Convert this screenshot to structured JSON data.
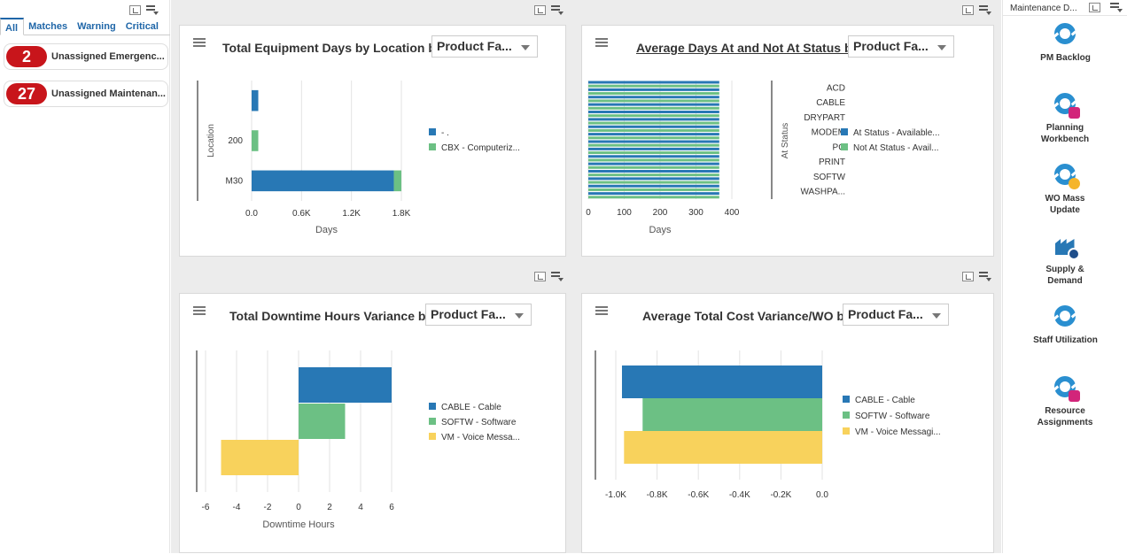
{
  "left": {
    "tabs": [
      "All",
      "Matches",
      "Warning",
      "Critical"
    ],
    "alerts": [
      {
        "count": "2",
        "label": "Unassigned Emergenc..."
      },
      {
        "count": "27",
        "label": "Unassigned Maintenan..."
      }
    ]
  },
  "right": {
    "header": "Maintenance D...",
    "tiles": [
      {
        "label": "PM Backlog",
        "icon": "refresh-circle-icon"
      },
      {
        "label": "Planning Workbench",
        "icon": "refresh-toolbox-icon"
      },
      {
        "label": "WO Mass Update",
        "icon": "refresh-gear-icon"
      },
      {
        "label": "Supply & Demand",
        "icon": "factory-search-icon"
      },
      {
        "label": "Staff Utilization",
        "icon": "refresh-circle-icon"
      },
      {
        "label": "Resource Assignments",
        "icon": "refresh-toolbox-icon"
      }
    ]
  },
  "colors": {
    "blue": "#2878b5",
    "green": "#6cc084",
    "yellow": "#f8d25c",
    "badge": "#c8151b"
  },
  "charts": {
    "c1": {
      "title": "Total Equipment Days by Location by",
      "dropdown": "Product Fa..."
    },
    "c2": {
      "title": "Average Days At and Not At Status by",
      "dropdown": "Product Fa..."
    },
    "c3": {
      "title": "Total Downtime Hours Variance by",
      "dropdown": "Product Fa..."
    },
    "c4": {
      "title": "Average Total Cost Variance/WO by",
      "dropdown": "Product Fa..."
    }
  },
  "chart_data": [
    {
      "type": "bar",
      "orientation": "horizontal",
      "stacked": true,
      "title": "Total Equipment Days by Location by",
      "ylabel": "Location",
      "xlabel": "Days",
      "categories": [
        "",
        "200",
        "M30"
      ],
      "xlim": [
        0,
        1800
      ],
      "xticks": [
        "0.0",
        "0.6K",
        "1.2K",
        "1.8K"
      ],
      "series": [
        {
          "name": "- .",
          "color": "#2878b5",
          "values": [
            80,
            0,
            1710
          ]
        },
        {
          "name": "CBX - Computeriz...",
          "color": "#6cc084",
          "values": [
            0,
            80,
            90
          ]
        }
      ],
      "legend": "right"
    },
    {
      "type": "bar",
      "orientation": "horizontal",
      "title": "Average Days At and Not At Status by",
      "ylabel": "At Status",
      "xlabel": "Days",
      "categories": [
        "ACD",
        "CABLE",
        "DRYPART",
        "MODEM",
        "PG",
        "PRINT",
        "SOFTW",
        "WASHPA..."
      ],
      "xlim": [
        0,
        400
      ],
      "xticks": [
        "0",
        "100",
        "200",
        "300",
        "400"
      ],
      "series": [
        {
          "name": "At Status - Available...",
          "color": "#2878b5",
          "values": [
            365,
            365,
            365,
            365,
            365,
            365,
            365,
            365
          ]
        },
        {
          "name": "Not At Status - Avail...",
          "color": "#6cc084",
          "values": [
            365,
            365,
            365,
            365,
            365,
            365,
            365,
            365
          ]
        }
      ],
      "legend": "right"
    },
    {
      "type": "bar",
      "orientation": "horizontal",
      "title": "Total Downtime Hours Variance by",
      "xlabel": "Downtime Hours",
      "xlim": [
        -6,
        6
      ],
      "xticks": [
        "-6",
        "-4",
        "-2",
        "0",
        "2",
        "4",
        "6"
      ],
      "series": [
        {
          "name": "CABLE - Cable",
          "color": "#2878b5",
          "values": [
            6
          ]
        },
        {
          "name": "SOFTW - Software",
          "color": "#6cc084",
          "values": [
            3
          ]
        },
        {
          "name": "VM - Voice Messa...",
          "color": "#f8d25c",
          "values": [
            -5
          ]
        }
      ],
      "legend": "right"
    },
    {
      "type": "bar",
      "orientation": "horizontal",
      "title": "Average Total Cost Variance/WO by",
      "xlim": [
        -1000,
        0
      ],
      "xticks": [
        "-1.0K",
        "-0.8K",
        "-0.6K",
        "-0.4K",
        "-0.2K",
        "0.0"
      ],
      "series": [
        {
          "name": "CABLE - Cable",
          "color": "#2878b5",
          "values": [
            -970
          ]
        },
        {
          "name": "SOFTW - Software",
          "color": "#6cc084",
          "values": [
            -870
          ]
        },
        {
          "name": "VM - Voice Messagi...",
          "color": "#f8d25c",
          "values": [
            -960
          ]
        }
      ],
      "legend": "right"
    }
  ]
}
